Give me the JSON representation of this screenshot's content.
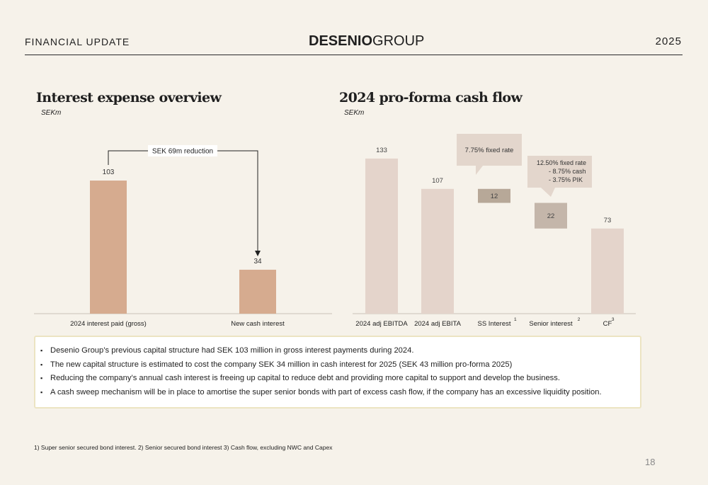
{
  "header": {
    "left": "FINANCIAL UPDATE",
    "brand_bold": "DESENIO",
    "brand_light": "GROUP",
    "right": "2025"
  },
  "left_panel": {
    "title": "Interest expense overview",
    "unit": "SEKm",
    "reduction_label": "SEK 69m reduction"
  },
  "right_panel": {
    "title": "2024 pro-forma cash flow",
    "unit": "SEKm",
    "callout_ss": "7.75% fixed rate",
    "callout_senior": [
      "12.50% fixed rate",
      "- 8.75% cash",
      "- 3.75% PIK"
    ]
  },
  "chart_data": [
    {
      "type": "bar",
      "title": "Interest expense overview",
      "subtitle": "SEKm",
      "categories": [
        "2024 interest paid (gross)",
        "New cash interest"
      ],
      "values": [
        103,
        34
      ],
      "annotation": "SEK 69m reduction",
      "colors": [
        "#d6ab8f"
      ],
      "ylim": [
        0,
        110
      ]
    },
    {
      "type": "bar",
      "title": "2024 pro-forma cash flow",
      "subtitle": "SEKm",
      "categories": [
        "2024 adj EBITDA",
        "2024 adj EBITA",
        "SS Interest",
        "Senior interest",
        "CF"
      ],
      "category_superscripts": [
        "",
        "",
        "1",
        "2",
        "3"
      ],
      "values": [
        133,
        107,
        12,
        22,
        73
      ],
      "bar_kind": [
        "total",
        "total",
        "floating",
        "floating",
        "total"
      ],
      "floating_ranges": [
        null,
        null,
        [
          95,
          107
        ],
        [
          73,
          95
        ],
        null
      ],
      "colors": {
        "total": "#e4d4cb",
        "ss": "#b7a898",
        "senior": "#c4b6aa"
      },
      "ylim": [
        0,
        140
      ]
    }
  ],
  "bullets": [
    "Desenio Group’s previous capital structure had SEK 103 million in gross interest payments during 2024.",
    "The new capital structure is estimated to cost the company SEK 34 million in cash interest for 2025 (SEK 43 million pro-forma 2025)",
    "Reducing the company’s annual cash interest is freeing up capital to reduce debt and providing more capital to support and develop the business.",
    "A cash sweep mechanism will be in place to amortise the super senior bonds with part of excess cash flow, if the company has an excessive liquidity position."
  ],
  "footnote": "1) Super senior secured bond interest. 2) Senior secured bond interest 3) Cash flow, excluding NWC and Capex",
  "page_number": "18"
}
